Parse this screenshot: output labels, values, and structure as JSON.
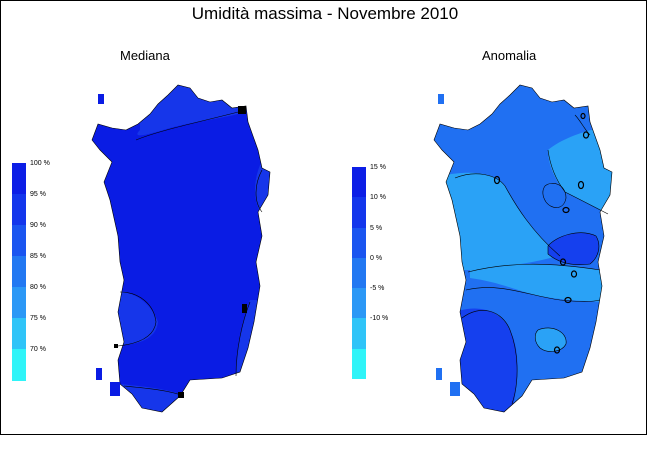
{
  "title": "Umidità massima - Novembre 2010",
  "panels": [
    {
      "name": "median",
      "subtitle": "Mediana",
      "legend": {
        "labels": [
          "100 %",
          "95 %",
          "90 %",
          "85 %",
          "80 %",
          "75 %",
          "70 %"
        ],
        "colors": [
          "#0c1ee6",
          "#1336ec",
          "#1a55f0",
          "#2278f2",
          "#2b98f6",
          "#2fc4f8",
          "#2ff4f8"
        ]
      }
    },
    {
      "name": "anomaly",
      "subtitle": "Anomalia",
      "legend": {
        "labels": [
          "15 %",
          "10 %",
          "5 %",
          "0 %",
          "-5 %",
          "-10 %"
        ],
        "colors": [
          "#0c1ee6",
          "#1336ec",
          "#1a55f0",
          "#2278f2",
          "#2b98f6",
          "#2fc4f8",
          "#2ff4f8"
        ]
      }
    }
  ],
  "colors": {
    "median_main": "#0a1ce4",
    "median_edge": "#1636ea",
    "anom_deep": "#1540ee",
    "anom_mid": "#2070f2",
    "anom_light": "#2aa2f6",
    "contour": "#000000"
  }
}
